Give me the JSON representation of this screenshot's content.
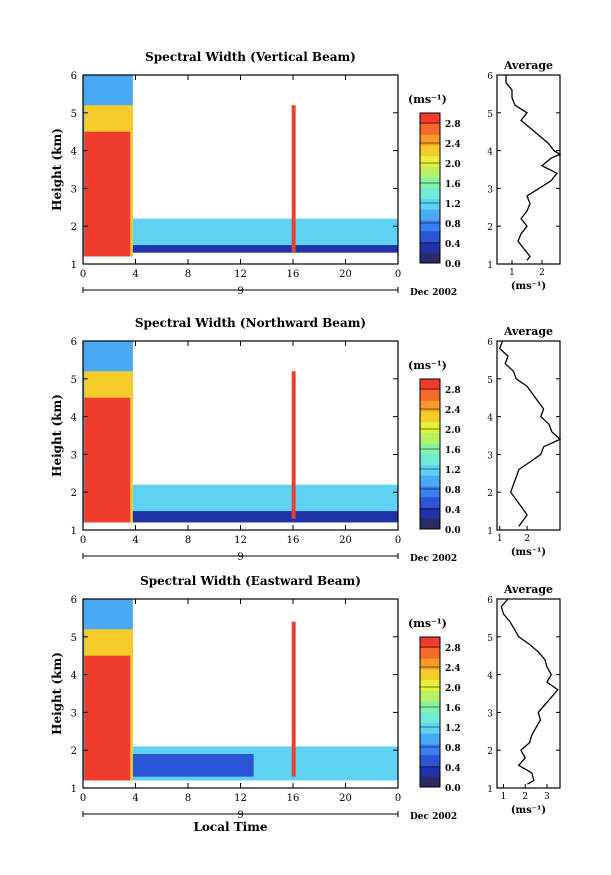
{
  "figure": {
    "xlabel": "Local Time",
    "date_label": "Dec 2002",
    "day_label": "9"
  },
  "colorbar": {
    "unit": "(ms⁻¹)",
    "colors": [
      "#2a2a66",
      "#2233aa",
      "#2c55d6",
      "#3a7ff0",
      "#4aa8f4",
      "#5fd2f4",
      "#6fecd8",
      "#86f2a6",
      "#b8f264",
      "#e4f03a",
      "#f6cc2a",
      "#f89a28",
      "#f46a2a",
      "#f03c2c"
    ]
  },
  "chart_data": [
    {
      "type": "heatmap",
      "title": "Spectral Width (Vertical Beam)",
      "ylabel": "Height (km)",
      "xlabel": "",
      "xlim": [
        0,
        24
      ],
      "ylim": [
        1,
        6
      ],
      "xticks": [
        "0",
        "4",
        "8",
        "12",
        "16",
        "20",
        "0"
      ],
      "yticks": [
        "1",
        "2",
        "3",
        "4",
        "5",
        "6"
      ],
      "colorbar_ticks": [
        "0.0",
        "0.4",
        "0.8",
        "1.2",
        "1.6",
        "2.0",
        "2.4",
        "2.8"
      ],
      "colorbar_range": [
        0,
        3.0
      ],
      "regions": [
        {
          "t0": 0,
          "t1": 3.8,
          "h0": 1.2,
          "h1": 6,
          "value": 0.9
        },
        {
          "t0": 0.1,
          "t1": 3.8,
          "h0": 1.2,
          "h1": 5.2,
          "value": 2.2
        },
        {
          "t0": 0.1,
          "t1": 3.6,
          "h0": 1.2,
          "h1": 4.5,
          "value": 3.0
        },
        {
          "t0": 3.8,
          "t1": 24,
          "h0": 1.3,
          "h1": 2.2,
          "value": 1.2
        },
        {
          "t0": 3.8,
          "t1": 24,
          "h0": 1.3,
          "h1": 1.5,
          "value": 0.4
        },
        {
          "t0": 15.9,
          "t1": 16.2,
          "h0": 1.3,
          "h1": 5.2,
          "value": 3.0
        }
      ],
      "profile": {
        "title": "Average",
        "xlabel": "(ms⁻¹)",
        "xlim": [
          0.5,
          2.6
        ],
        "xticks": [
          "1",
          "2"
        ],
        "yticks": [
          "1",
          "2",
          "3",
          "4",
          "5",
          "6"
        ],
        "height": [
          6.0,
          5.8,
          5.6,
          5.4,
          5.2,
          5.0,
          4.8,
          4.6,
          4.4,
          4.2,
          4.0,
          3.9,
          3.8,
          3.6,
          3.4,
          3.2,
          3.0,
          2.8,
          2.6,
          2.4,
          2.2,
          2.0,
          1.8,
          1.6,
          1.4,
          1.2,
          1.1
        ],
        "values": [
          0.8,
          0.8,
          1.0,
          1.0,
          1.1,
          1.5,
          1.3,
          1.6,
          1.9,
          2.2,
          2.4,
          2.6,
          2.3,
          2.0,
          2.5,
          2.3,
          1.9,
          1.5,
          1.6,
          1.5,
          1.3,
          1.5,
          1.3,
          1.2,
          1.4,
          1.6,
          1.5
        ]
      }
    },
    {
      "type": "heatmap",
      "title": "Spectral Width (Northward Beam)",
      "ylabel": "Height (km)",
      "xlabel": "",
      "xlim": [
        0,
        24
      ],
      "ylim": [
        1,
        6
      ],
      "xticks": [
        "0",
        "4",
        "8",
        "12",
        "16",
        "20",
        "0"
      ],
      "yticks": [
        "1",
        "2",
        "3",
        "4",
        "5",
        "6"
      ],
      "colorbar_ticks": [
        "0.0",
        "0.4",
        "0.8",
        "1.2",
        "1.6",
        "2.0",
        "2.4",
        "2.8"
      ],
      "colorbar_range": [
        0,
        3.0
      ],
      "regions": [
        {
          "t0": 0,
          "t1": 3.8,
          "h0": 1.2,
          "h1": 6,
          "value": 0.9
        },
        {
          "t0": 0.1,
          "t1": 3.8,
          "h0": 1.2,
          "h1": 5.2,
          "value": 2.2
        },
        {
          "t0": 0.1,
          "t1": 3.6,
          "h0": 1.2,
          "h1": 4.5,
          "value": 3.0
        },
        {
          "t0": 3.8,
          "t1": 24,
          "h0": 1.2,
          "h1": 2.2,
          "value": 1.1
        },
        {
          "t0": 3.8,
          "t1": 24,
          "h0": 1.2,
          "h1": 1.5,
          "value": 0.4
        },
        {
          "t0": 15.9,
          "t1": 16.2,
          "h0": 1.3,
          "h1": 5.2,
          "value": 3.0
        }
      ],
      "profile": {
        "title": "Average",
        "xlabel": "(ms⁻¹)",
        "xlim": [
          0.9,
          3.2
        ],
        "xticks": [
          "1",
          "2"
        ],
        "yticks": [
          "1",
          "2",
          "3",
          "4",
          "5",
          "6"
        ],
        "height": [
          6.0,
          5.8,
          5.6,
          5.4,
          5.2,
          5.0,
          4.8,
          4.6,
          4.4,
          4.2,
          4.0,
          3.8,
          3.6,
          3.4,
          3.2,
          3.0,
          2.8,
          2.6,
          2.4,
          2.2,
          2.0,
          1.8,
          1.6,
          1.4,
          1.2,
          1.1
        ],
        "values": [
          1.1,
          1.0,
          1.3,
          1.2,
          1.5,
          1.6,
          2.0,
          2.2,
          2.4,
          2.6,
          2.5,
          2.8,
          2.9,
          3.2,
          2.6,
          2.5,
          2.1,
          1.7,
          1.6,
          1.5,
          1.4,
          1.6,
          1.8,
          2.0,
          1.8,
          1.7
        ]
      }
    },
    {
      "type": "heatmap",
      "title": "Spectral Width (Eastward Beam)",
      "ylabel": "Height (km)",
      "xlabel": "Local Time",
      "xlim": [
        0,
        24
      ],
      "ylim": [
        1,
        6
      ],
      "xticks": [
        "0",
        "4",
        "8",
        "12",
        "16",
        "20",
        "0"
      ],
      "yticks": [
        "1",
        "2",
        "3",
        "4",
        "5",
        "6"
      ],
      "colorbar_ticks": [
        "0.0",
        "0.4",
        "0.8",
        "1.2",
        "1.6",
        "2.0",
        "2.4",
        "2.8"
      ],
      "colorbar_range": [
        0,
        3.0
      ],
      "regions": [
        {
          "t0": 0,
          "t1": 3.8,
          "h0": 1.2,
          "h1": 6,
          "value": 0.9
        },
        {
          "t0": 0.1,
          "t1": 3.8,
          "h0": 1.2,
          "h1": 5.2,
          "value": 2.2
        },
        {
          "t0": 0.1,
          "t1": 3.6,
          "h0": 1.2,
          "h1": 4.5,
          "value": 3.0
        },
        {
          "t0": 3.8,
          "t1": 24,
          "h0": 1.2,
          "h1": 2.1,
          "value": 1.1
        },
        {
          "t0": 3.8,
          "t1": 13,
          "h0": 1.3,
          "h1": 1.9,
          "value": 0.5
        },
        {
          "t0": 15.9,
          "t1": 16.2,
          "h0": 1.3,
          "h1": 5.4,
          "value": 3.0
        }
      ],
      "profile": {
        "title": "Average",
        "xlabel": "(ms⁻¹)",
        "xlim": [
          0.7,
          3.6
        ],
        "xticks": [
          "1",
          "2",
          "3"
        ],
        "yticks": [
          "1",
          "2",
          "3",
          "4",
          "5",
          "6"
        ],
        "height": [
          6.0,
          5.8,
          5.6,
          5.4,
          5.2,
          5.0,
          4.8,
          4.6,
          4.4,
          4.2,
          4.0,
          3.8,
          3.6,
          3.4,
          3.2,
          3.0,
          2.8,
          2.6,
          2.4,
          2.2,
          2.0,
          1.8,
          1.6,
          1.4,
          1.2,
          1.1
        ],
        "values": [
          1.2,
          0.9,
          1.0,
          1.3,
          1.5,
          1.7,
          2.2,
          2.6,
          2.9,
          3.0,
          3.2,
          3.0,
          3.5,
          3.2,
          2.9,
          2.6,
          2.7,
          2.5,
          2.3,
          2.2,
          1.8,
          2.0,
          1.7,
          2.3,
          2.4,
          2.1
        ]
      }
    }
  ]
}
